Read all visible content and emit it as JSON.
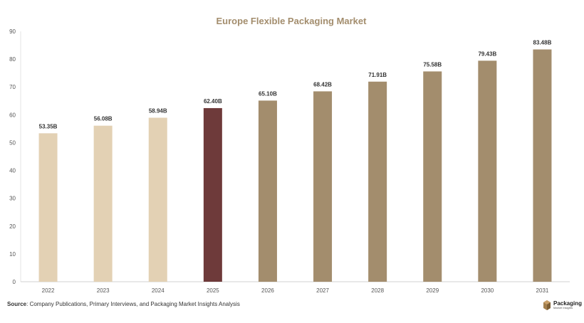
{
  "chart_data": {
    "type": "bar",
    "title": "Europe Flexible Packaging Market",
    "categories": [
      "2022",
      "2023",
      "2024",
      "2025",
      "2026",
      "2027",
      "2028",
      "2029",
      "2030",
      "2031"
    ],
    "values": [
      53.35,
      56.08,
      58.94,
      62.4,
      65.1,
      68.42,
      71.91,
      75.58,
      79.43,
      83.48
    ],
    "value_labels": [
      "53.35B",
      "56.08B",
      "58.94B",
      "62.40B",
      "65.10B",
      "68.42B",
      "71.91B",
      "75.58B",
      "79.43B",
      "83.48B"
    ],
    "yticks": [
      "0",
      "10",
      "20",
      "30",
      "40",
      "50",
      "60",
      "70",
      "80",
      "90"
    ],
    "ylim": [
      0,
      90
    ],
    "xlabel": "",
    "ylabel": "",
    "grid": false,
    "colors": {
      "historical": "#e3d1b4",
      "current": "#6e3a3a",
      "forecast": "#a38d6d",
      "title": "#a38d6d"
    },
    "bar_groups": [
      "historical",
      "historical",
      "historical",
      "current",
      "forecast",
      "forecast",
      "forecast",
      "forecast",
      "forecast",
      "forecast"
    ]
  },
  "footer": {
    "source_label": "Source",
    "source_text": ": Company Publications, Primary Interviews, and Packaging Market Insights Analysis"
  },
  "logo": {
    "name": "Packaging",
    "tagline": "Market Insights",
    "icon": "box-icon"
  }
}
